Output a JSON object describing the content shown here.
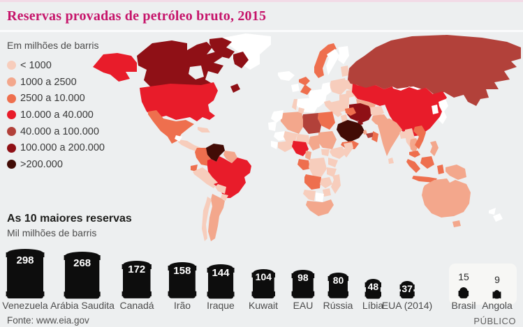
{
  "header": {
    "title": "Reservas provadas de petróleo bruto, 2015",
    "title_color": "#c6156b"
  },
  "legend": {
    "heading": "Em milhões de barris",
    "items": [
      {
        "label": "< 1000",
        "color": "#f7cdbc"
      },
      {
        "label": "1000 a 2500",
        "color": "#f3a78c"
      },
      {
        "label": "2500 a 10.000",
        "color": "#ee6f4e"
      },
      {
        "label": "10.000 a 40.000",
        "color": "#e81c2a"
      },
      {
        "label": "40.000 a 100.000",
        "color": "#b2413a"
      },
      {
        "label": "100.000 a 200.000",
        "color": "#8f1016"
      },
      {
        "label": ">200.000",
        "color": "#420c06"
      }
    ]
  },
  "map": {
    "no_data_color": "#ffffff",
    "ocean_color": "#edeff0",
    "barrel_color": "#0d0d0d"
  },
  "chart_data": {
    "type": "bar",
    "variant": "pictorial-oil-barrels",
    "title": "As 10 maiores reservas",
    "subtitle": "Mil milhões de barris",
    "categories": [
      "Venezuela",
      "Arábia Saudita",
      "Canadá",
      "Irão",
      "Iraque",
      "Kuwait",
      "EAU",
      "Rússia",
      "Líbia",
      "EUA (2014)",
      "Brasil",
      "Angola"
    ],
    "values": [
      298,
      268,
      172,
      158,
      144,
      104,
      98,
      80,
      48,
      37,
      15,
      9
    ],
    "value_label_inside": [
      true,
      true,
      true,
      true,
      true,
      true,
      true,
      true,
      true,
      true,
      false,
      false
    ],
    "highlight_group": [
      "Brasil",
      "Angola"
    ]
  },
  "footer": {
    "source": "Fonte: www.eia.gov",
    "brand": "PÚBLICO"
  }
}
